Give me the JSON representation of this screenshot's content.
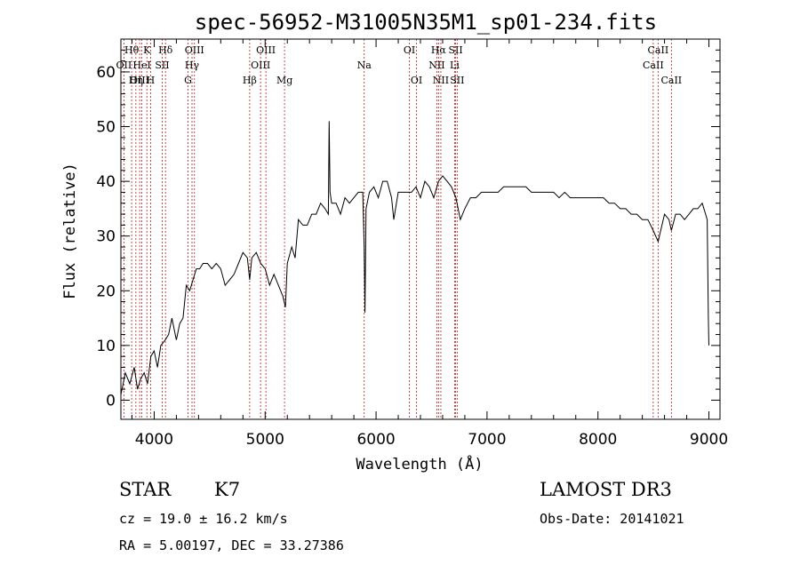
{
  "chart_data": {
    "type": "line",
    "title": "spec-56952-M31005N35M1_sp01-234.fits",
    "xlabel": "Wavelength (Å)",
    "ylabel": "Flux (relative)",
    "xlim": [
      3700,
      9100
    ],
    "ylim": [
      -3.5,
      66
    ],
    "xticks": [
      4000,
      5000,
      6000,
      7000,
      8000,
      9000
    ],
    "yticks": [
      0,
      10,
      20,
      30,
      40,
      50,
      60
    ],
    "series": [
      {
        "name": "spectrum",
        "x": [
          3700,
          3740,
          3780,
          3820,
          3850,
          3880,
          3910,
          3940,
          3970,
          4000,
          4030,
          4060,
          4100,
          4130,
          4160,
          4200,
          4230,
          4260,
          4290,
          4320,
          4350,
          4380,
          4410,
          4440,
          4480,
          4520,
          4560,
          4600,
          4640,
          4680,
          4720,
          4760,
          4800,
          4840,
          4861,
          4880,
          4920,
          4960,
          5000,
          5040,
          5080,
          5120,
          5160,
          5183,
          5200,
          5240,
          5270,
          5300,
          5340,
          5380,
          5420,
          5460,
          5500,
          5540,
          5570,
          5577,
          5585,
          5600,
          5640,
          5680,
          5720,
          5760,
          5800,
          5840,
          5880,
          5893,
          5900,
          5910,
          5940,
          5980,
          6020,
          6060,
          6100,
          6140,
          6160,
          6200,
          6240,
          6280,
          6320,
          6360,
          6400,
          6440,
          6480,
          6520,
          6563,
          6600,
          6640,
          6680,
          6720,
          6760,
          6800,
          6850,
          6900,
          6950,
          7000,
          7050,
          7100,
          7150,
          7200,
          7250,
          7300,
          7350,
          7400,
          7450,
          7500,
          7550,
          7600,
          7650,
          7700,
          7750,
          7800,
          7850,
          7900,
          7950,
          8000,
          8050,
          8100,
          8150,
          8200,
          8250,
          8300,
          8350,
          8400,
          8450,
          8498,
          8542,
          8600,
          8640,
          8662,
          8700,
          8740,
          8780,
          8820,
          8860,
          8900,
          8940,
          8970,
          8985,
          8995,
          9000
        ],
        "y": [
          1,
          5,
          3,
          6,
          2,
          4,
          5,
          3,
          8,
          9,
          6,
          10,
          11,
          12,
          15,
          11,
          14,
          15,
          21,
          20,
          22,
          24,
          24,
          25,
          25,
          24,
          25,
          24,
          21,
          22,
          23,
          25,
          27,
          26,
          22,
          26,
          27,
          25,
          24,
          21,
          23,
          21,
          19,
          17,
          25,
          28,
          26,
          33,
          32,
          32,
          34,
          34,
          36,
          35,
          34,
          51,
          38,
          36,
          36,
          34,
          37,
          36,
          37,
          38,
          38,
          28,
          16,
          35,
          38,
          39,
          37,
          40,
          40,
          37,
          33,
          38,
          38,
          38,
          38,
          39,
          37,
          40,
          39,
          37,
          40,
          41,
          40,
          39,
          37,
          33,
          35,
          37,
          37,
          38,
          38,
          38,
          38,
          39,
          39,
          39,
          39,
          39,
          38,
          38,
          38,
          38,
          38,
          37,
          38,
          37,
          37,
          37,
          37,
          37,
          37,
          37,
          36,
          36,
          35,
          35,
          34,
          34,
          33,
          33,
          31,
          29,
          34,
          33,
          31,
          34,
          34,
          33,
          34,
          35,
          35,
          36,
          34,
          33,
          15,
          10
        ]
      }
    ],
    "spectral_lines": [
      {
        "label": "Hθ",
        "x": 3797,
        "row": 0
      },
      {
        "label": "OII",
        "x": 3727,
        "row": 1
      },
      {
        "label": "OIII",
        "x": 3869,
        "row": 2
      },
      {
        "label": "Hη",
        "x": 3835,
        "row": 2
      },
      {
        "label": "K",
        "x": 3934,
        "row": 0
      },
      {
        "label": "HeI",
        "x": 3889,
        "row": 1
      },
      {
        "label": "H",
        "x": 3968,
        "row": 2
      },
      {
        "label": "Hδ",
        "x": 4102,
        "row": 0
      },
      {
        "label": "SII",
        "x": 4072,
        "row": 1
      },
      {
        "label": "OIII",
        "x": 4363,
        "row": 0
      },
      {
        "label": "Hγ",
        "x": 4341,
        "row": 1
      },
      {
        "label": "G",
        "x": 4305,
        "row": 2
      },
      {
        "label": "OIII",
        "x": 5007,
        "row": 0
      },
      {
        "label": "OIII",
        "x": 4959,
        "row": 1
      },
      {
        "label": "Hβ",
        "x": 4861,
        "row": 2
      },
      {
        "label": "Mg",
        "x": 5175,
        "row": 2
      },
      {
        "label": "Na",
        "x": 5893,
        "row": 1
      },
      {
        "label": "OI",
        "x": 6300,
        "row": 0
      },
      {
        "label": "OI",
        "x": 6364,
        "row": 2
      },
      {
        "label": "Hα",
        "x": 6563,
        "row": 0
      },
      {
        "label": "SII",
        "x": 6717,
        "row": 0
      },
      {
        "label": "NII",
        "x": 6548,
        "row": 1
      },
      {
        "label": "Li",
        "x": 6708,
        "row": 1
      },
      {
        "label": "NII",
        "x": 6584,
        "row": 2
      },
      {
        "label": "SII",
        "x": 6731,
        "row": 2
      },
      {
        "label": "CaII",
        "x": 8542,
        "row": 0
      },
      {
        "label": "CaII",
        "x": 8498,
        "row": 1
      },
      {
        "label": "CaII",
        "x": 8662,
        "row": 2
      }
    ]
  },
  "info": {
    "object_class": "STAR",
    "subclass": "K7",
    "survey": "LAMOST DR3",
    "redshift": "cz =  19.0 ± 16.2 km/s",
    "obs_date": "Obs-Date: 20141021",
    "coords": "RA =   5.00197, DEC =  33.27386"
  }
}
